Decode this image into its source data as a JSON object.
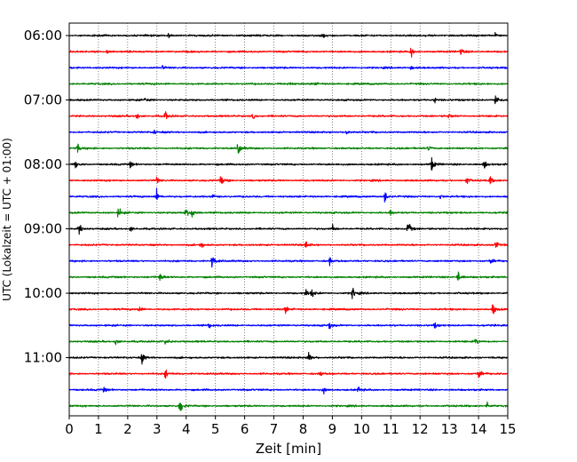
{
  "chart_data": {
    "type": "line",
    "title": "",
    "xlabel": "Zeit  [min]",
    "ylabel": "UTC (Lokalzeit = UTC + 01:00)",
    "xlim": [
      0,
      15
    ],
    "xticks": [
      "0",
      "1",
      "2",
      "3",
      "4",
      "5",
      "6",
      "7",
      "8",
      "9",
      "10",
      "11",
      "12",
      "13",
      "14",
      "15"
    ],
    "yticks": [
      "06:00",
      "07:00",
      "08:00",
      "09:00",
      "10:00",
      "11:00"
    ],
    "grid": "vertical dotted lines at each minute",
    "trace_colors": [
      "#000000",
      "#ff0000",
      "#0000ff",
      "#008000"
    ],
    "trace_interval_min": 15,
    "trace_start_times": [
      "06:00",
      "06:15",
      "06:30",
      "06:45",
      "07:00",
      "07:15",
      "07:30",
      "07:45",
      "08:00",
      "08:15",
      "08:30",
      "08:45",
      "09:00",
      "09:15",
      "09:30",
      "09:45",
      "10:00",
      "10:15",
      "10:30",
      "10:45",
      "11:00",
      "11:15",
      "11:30",
      "11:45"
    ],
    "events": [
      [
        [
          3.4,
          0.35
        ],
        [
          8.7,
          0.35
        ],
        [
          14.6,
          0.45
        ]
      ],
      [
        [
          1.3,
          0.45
        ],
        [
          11.7,
          0.9
        ],
        [
          13.4,
          0.55
        ]
      ],
      [
        [
          3.2,
          0.3
        ],
        [
          11.7,
          0.35
        ]
      ],
      [
        [
          7.5,
          0.55
        ],
        [
          8.4,
          0.25
        ]
      ],
      [
        [
          2.6,
          0.3
        ],
        [
          12.5,
          0.35
        ],
        [
          14.6,
          1.2
        ]
      ],
      [
        [
          2.3,
          0.6
        ],
        [
          3.3,
          0.55
        ],
        [
          6.3,
          0.35
        ],
        [
          13.0,
          0.4
        ]
      ],
      [
        [
          2.9,
          0.35
        ],
        [
          9.5,
          0.45
        ]
      ],
      [
        [
          0.3,
          0.5
        ],
        [
          5.8,
          1.0
        ],
        [
          12.3,
          0.35
        ]
      ],
      [
        [
          0.2,
          0.7
        ],
        [
          2.1,
          0.5
        ],
        [
          12.4,
          1.2
        ],
        [
          14.2,
          0.6
        ]
      ],
      [
        [
          3.0,
          0.5
        ],
        [
          5.2,
          0.9
        ],
        [
          13.6,
          0.6
        ],
        [
          14.4,
          0.6
        ]
      ],
      [
        [
          3.0,
          1.0
        ],
        [
          4.9,
          0.5
        ],
        [
          10.8,
          0.9
        ],
        [
          12.7,
          0.35
        ]
      ],
      [
        [
          1.7,
          0.8
        ],
        [
          4.0,
          0.7
        ],
        [
          4.2,
          0.9
        ],
        [
          11.0,
          0.35
        ]
      ],
      [
        [
          0.35,
          0.7
        ],
        [
          2.1,
          0.4
        ],
        [
          9.0,
          0.5
        ],
        [
          11.6,
          1.2
        ]
      ],
      [
        [
          4.5,
          0.6
        ],
        [
          8.1,
          0.55
        ],
        [
          14.6,
          1.0
        ]
      ],
      [
        [
          4.9,
          1.0
        ],
        [
          8.9,
          0.65
        ],
        [
          14.4,
          0.55
        ]
      ],
      [
        [
          3.1,
          0.8
        ],
        [
          13.3,
          0.9
        ]
      ],
      [
        [
          8.1,
          0.6
        ],
        [
          8.3,
          0.7
        ],
        [
          9.7,
          1.0
        ]
      ],
      [
        [
          2.4,
          0.45
        ],
        [
          7.4,
          0.55
        ],
        [
          14.5,
          0.9
        ]
      ],
      [
        [
          4.8,
          0.35
        ],
        [
          8.9,
          0.6
        ],
        [
          12.5,
          0.4
        ]
      ],
      [
        [
          1.6,
          0.55
        ],
        [
          3.3,
          0.55
        ],
        [
          13.9,
          0.55
        ]
      ],
      [
        [
          2.5,
          0.8
        ],
        [
          8.2,
          1.2
        ]
      ],
      [
        [
          3.3,
          0.6
        ],
        [
          8.6,
          0.35
        ],
        [
          14.0,
          0.9
        ]
      ],
      [
        [
          1.2,
          0.35
        ],
        [
          8.7,
          0.45
        ],
        [
          9.9,
          0.4
        ]
      ],
      [
        [
          3.8,
          1.1
        ],
        [
          14.3,
          0.55
        ]
      ]
    ]
  }
}
